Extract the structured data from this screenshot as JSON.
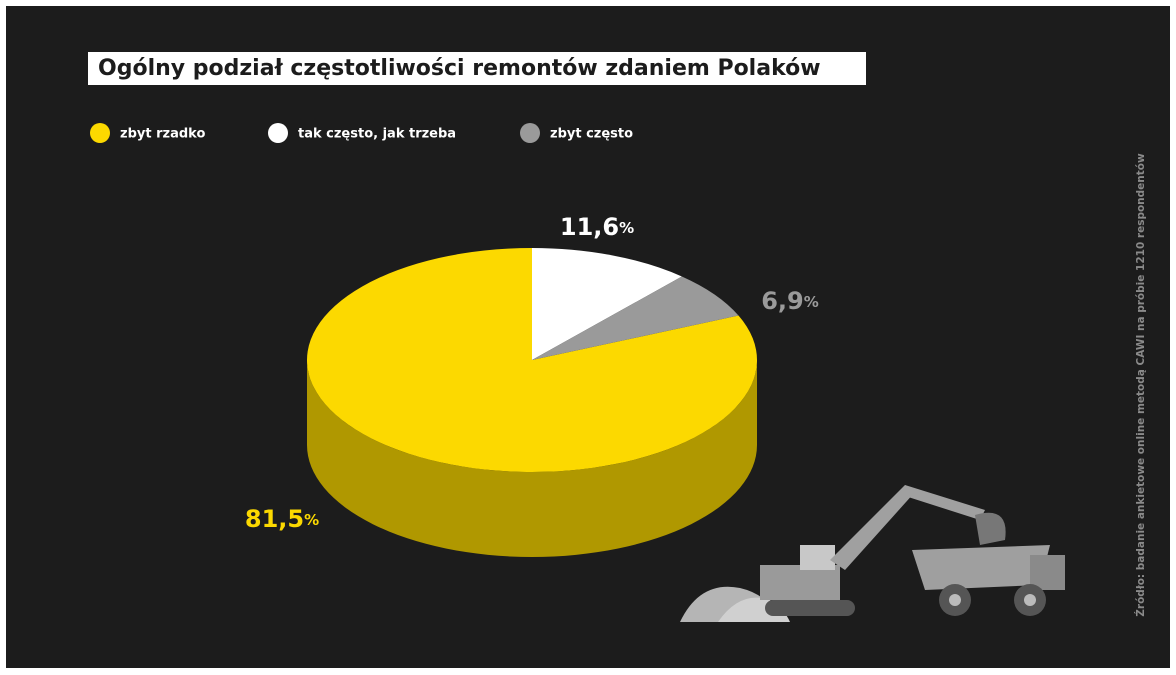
{
  "chart_data": {
    "type": "pie",
    "title": "Ogólny podział częstotliwości remontów zdaniem Polaków",
    "source": "Źródło: badanie ankietowe online metodą CAWI na próbie 1210 respondentów",
    "categories": [
      "zbyt rzadko",
      "tak często, jak trzeba",
      "zbyt często"
    ],
    "values": [
      81.5,
      11.6,
      6.9
    ],
    "value_labels": [
      "81,5%",
      "11,6%",
      "6,9%"
    ],
    "colors": [
      "#fcd900",
      "#ffffff",
      "#9a9a9a"
    ],
    "legend": "top-left"
  }
}
